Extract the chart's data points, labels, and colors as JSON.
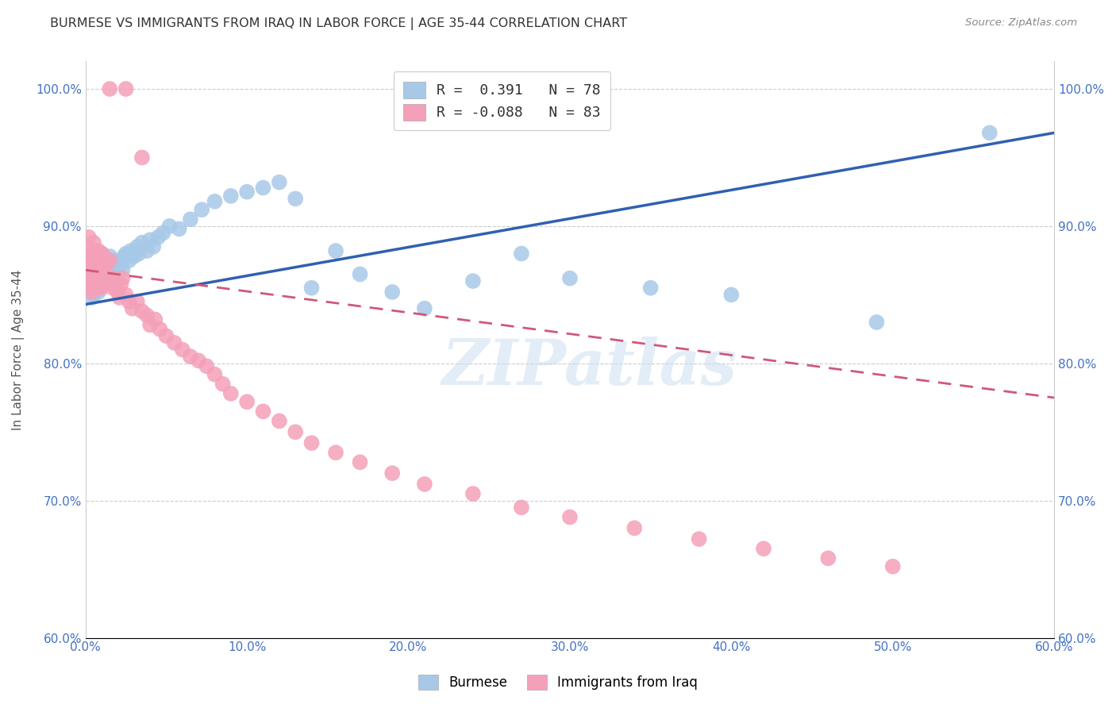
{
  "title": "BURMESE VS IMMIGRANTS FROM IRAQ IN LABOR FORCE | AGE 35-44 CORRELATION CHART",
  "source": "Source: ZipAtlas.com",
  "ylabel": "In Labor Force | Age 35-44",
  "xmin": 0.0,
  "xmax": 0.6,
  "ymin": 0.6,
  "ymax": 1.02,
  "xticks": [
    0.0,
    0.1,
    0.2,
    0.3,
    0.4,
    0.5,
    0.6
  ],
  "yticks": [
    0.6,
    0.7,
    0.8,
    0.9,
    1.0
  ],
  "ytick_labels": [
    "60.0%",
    "70.0%",
    "80.0%",
    "90.0%",
    "100.0%"
  ],
  "xtick_labels": [
    "0.0%",
    "10.0%",
    "20.0%",
    "30.0%",
    "40.0%",
    "50.0%",
    "60.0%"
  ],
  "blue_R": "0.391",
  "blue_N": "78",
  "pink_R": "-0.088",
  "pink_N": "83",
  "blue_color": "#a8c8e8",
  "pink_color": "#f4a0b8",
  "blue_line_color": "#3060b0",
  "pink_line_color": "#d05878",
  "watermark": "ZIPatlas",
  "legend_label_blue": "Burmese",
  "legend_label_pink": "Immigrants from Iraq",
  "blue_line_x0": 0.0,
  "blue_line_y0": 0.843,
  "blue_line_x1": 0.6,
  "blue_line_y1": 0.968,
  "pink_line_x0": 0.0,
  "pink_line_y0": 0.868,
  "pink_line_x1": 0.6,
  "pink_line_y1": 0.775,
  "blue_scatter_x": [
    0.001,
    0.002,
    0.002,
    0.003,
    0.003,
    0.004,
    0.004,
    0.004,
    0.005,
    0.005,
    0.005,
    0.006,
    0.006,
    0.006,
    0.007,
    0.007,
    0.007,
    0.008,
    0.008,
    0.008,
    0.009,
    0.009,
    0.01,
    0.01,
    0.01,
    0.011,
    0.011,
    0.012,
    0.012,
    0.013,
    0.013,
    0.014,
    0.014,
    0.015,
    0.015,
    0.016,
    0.017,
    0.018,
    0.019,
    0.02,
    0.021,
    0.022,
    0.023,
    0.024,
    0.025,
    0.027,
    0.028,
    0.03,
    0.032,
    0.033,
    0.035,
    0.038,
    0.04,
    0.042,
    0.045,
    0.048,
    0.052,
    0.058,
    0.065,
    0.072,
    0.08,
    0.09,
    0.1,
    0.11,
    0.12,
    0.13,
    0.14,
    0.155,
    0.17,
    0.19,
    0.21,
    0.24,
    0.27,
    0.3,
    0.35,
    0.4,
    0.49,
    0.56
  ],
  "blue_scatter_y": [
    0.858,
    0.862,
    0.87,
    0.855,
    0.878,
    0.848,
    0.86,
    0.872,
    0.85,
    0.865,
    0.88,
    0.855,
    0.87,
    0.882,
    0.858,
    0.868,
    0.876,
    0.852,
    0.862,
    0.875,
    0.86,
    0.873,
    0.856,
    0.868,
    0.88,
    0.862,
    0.875,
    0.858,
    0.87,
    0.862,
    0.875,
    0.858,
    0.872,
    0.862,
    0.878,
    0.87,
    0.865,
    0.875,
    0.868,
    0.87,
    0.875,
    0.872,
    0.868,
    0.878,
    0.88,
    0.875,
    0.882,
    0.878,
    0.885,
    0.88,
    0.888,
    0.882,
    0.89,
    0.885,
    0.892,
    0.895,
    0.9,
    0.898,
    0.905,
    0.912,
    0.918,
    0.922,
    0.925,
    0.928,
    0.932,
    0.92,
    0.855,
    0.882,
    0.865,
    0.852,
    0.84,
    0.86,
    0.88,
    0.862,
    0.855,
    0.85,
    0.83,
    0.968
  ],
  "pink_scatter_x": [
    0.001,
    0.001,
    0.002,
    0.002,
    0.002,
    0.003,
    0.003,
    0.003,
    0.004,
    0.004,
    0.004,
    0.005,
    0.005,
    0.005,
    0.006,
    0.006,
    0.006,
    0.007,
    0.007,
    0.007,
    0.008,
    0.008,
    0.008,
    0.009,
    0.009,
    0.01,
    0.01,
    0.01,
    0.011,
    0.011,
    0.012,
    0.012,
    0.013,
    0.013,
    0.014,
    0.015,
    0.015,
    0.016,
    0.017,
    0.018,
    0.019,
    0.02,
    0.021,
    0.022,
    0.023,
    0.025,
    0.027,
    0.029,
    0.032,
    0.035,
    0.038,
    0.04,
    0.043,
    0.046,
    0.05,
    0.055,
    0.06,
    0.065,
    0.07,
    0.075,
    0.08,
    0.085,
    0.09,
    0.1,
    0.11,
    0.12,
    0.13,
    0.14,
    0.155,
    0.17,
    0.19,
    0.21,
    0.24,
    0.27,
    0.3,
    0.34,
    0.38,
    0.42,
    0.46,
    0.5,
    0.015,
    0.025,
    0.035
  ],
  "pink_scatter_y": [
    0.862,
    0.878,
    0.855,
    0.87,
    0.892,
    0.858,
    0.868,
    0.882,
    0.852,
    0.866,
    0.878,
    0.862,
    0.875,
    0.888,
    0.858,
    0.87,
    0.882,
    0.855,
    0.868,
    0.88,
    0.858,
    0.87,
    0.882,
    0.862,
    0.875,
    0.855,
    0.868,
    0.88,
    0.86,
    0.872,
    0.858,
    0.87,
    0.862,
    0.876,
    0.858,
    0.862,
    0.875,
    0.862,
    0.855,
    0.862,
    0.858,
    0.852,
    0.848,
    0.858,
    0.862,
    0.85,
    0.845,
    0.84,
    0.845,
    0.838,
    0.835,
    0.828,
    0.832,
    0.825,
    0.82,
    0.815,
    0.81,
    0.805,
    0.802,
    0.798,
    0.792,
    0.785,
    0.778,
    0.772,
    0.765,
    0.758,
    0.75,
    0.742,
    0.735,
    0.728,
    0.72,
    0.712,
    0.705,
    0.695,
    0.688,
    0.68,
    0.672,
    0.665,
    0.658,
    0.652,
    1.0,
    1.0,
    0.95
  ]
}
